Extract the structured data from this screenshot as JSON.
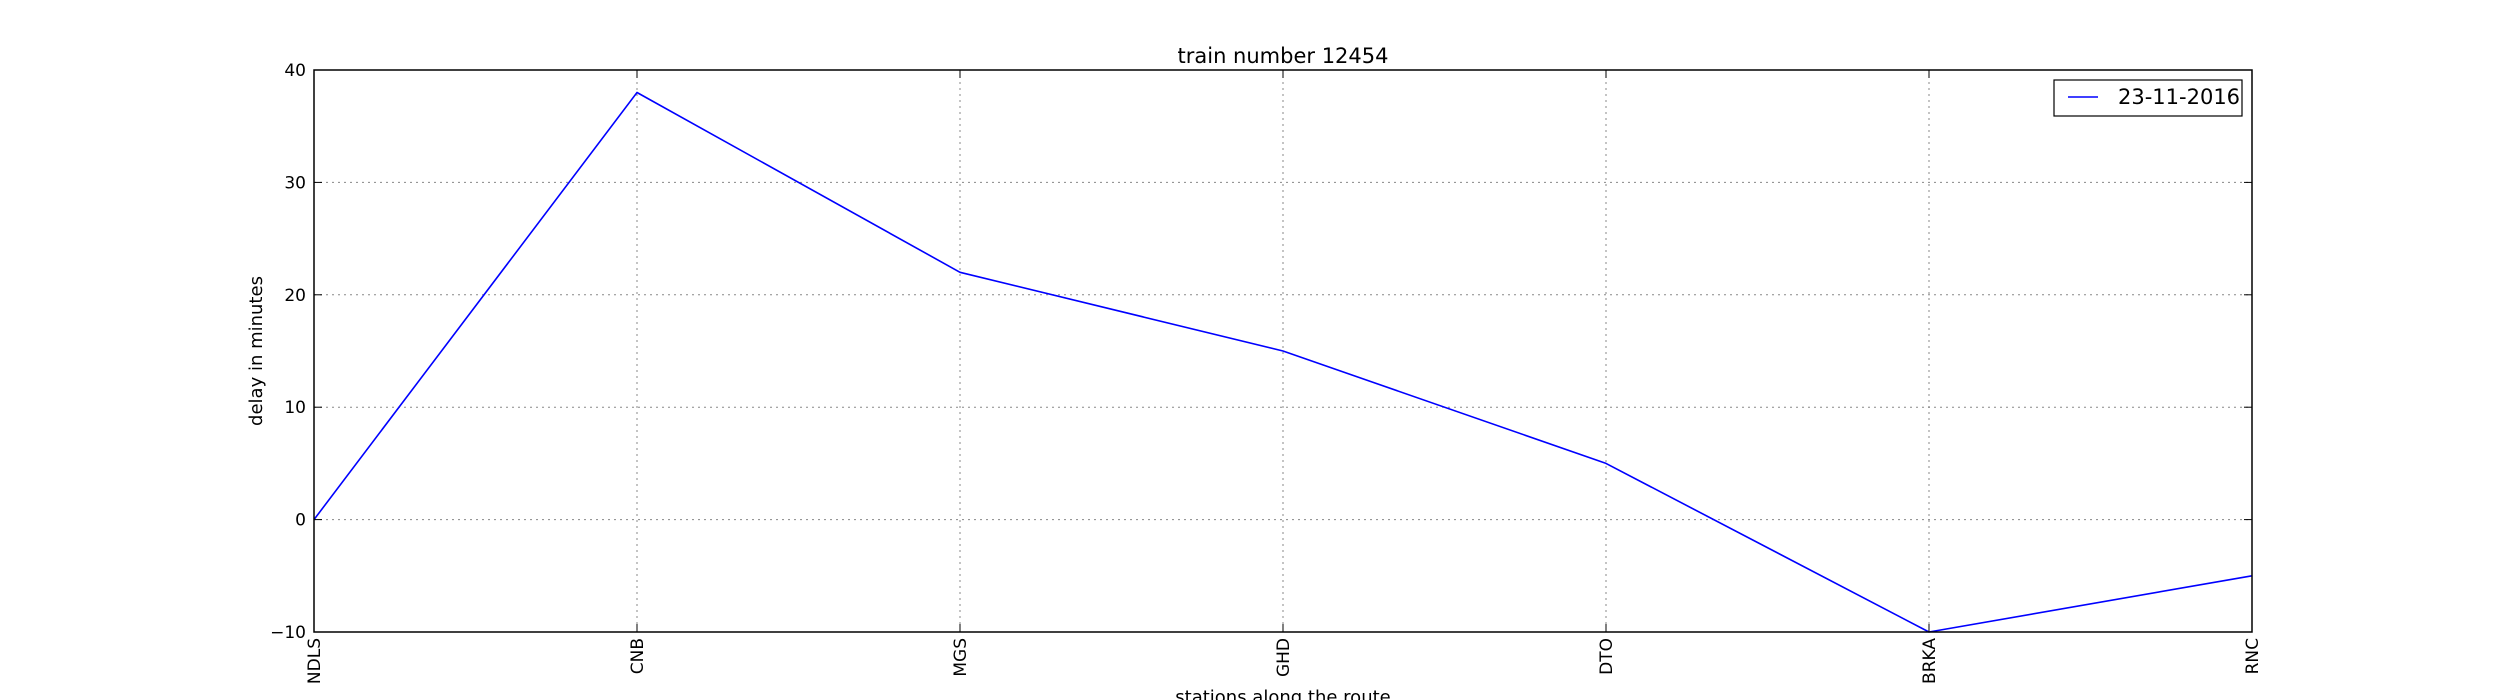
{
  "chart_data": {
    "type": "line",
    "title": "train number 12454",
    "xlabel": "stations along the route",
    "ylabel": "delay in minutes",
    "categories": [
      "NDLS",
      "CNB",
      "MGS",
      "GHD",
      "DTO",
      "BRKA",
      "RNC"
    ],
    "series": [
      {
        "name": "23-11-2016",
        "values": [
          0,
          38,
          22,
          15,
          5,
          -10,
          -5
        ],
        "color": "#0000ff"
      }
    ],
    "ylim": [
      -10,
      40
    ],
    "yticks": [
      -10,
      0,
      10,
      20,
      30,
      40
    ],
    "grid": true,
    "legend_position": "top-right"
  }
}
